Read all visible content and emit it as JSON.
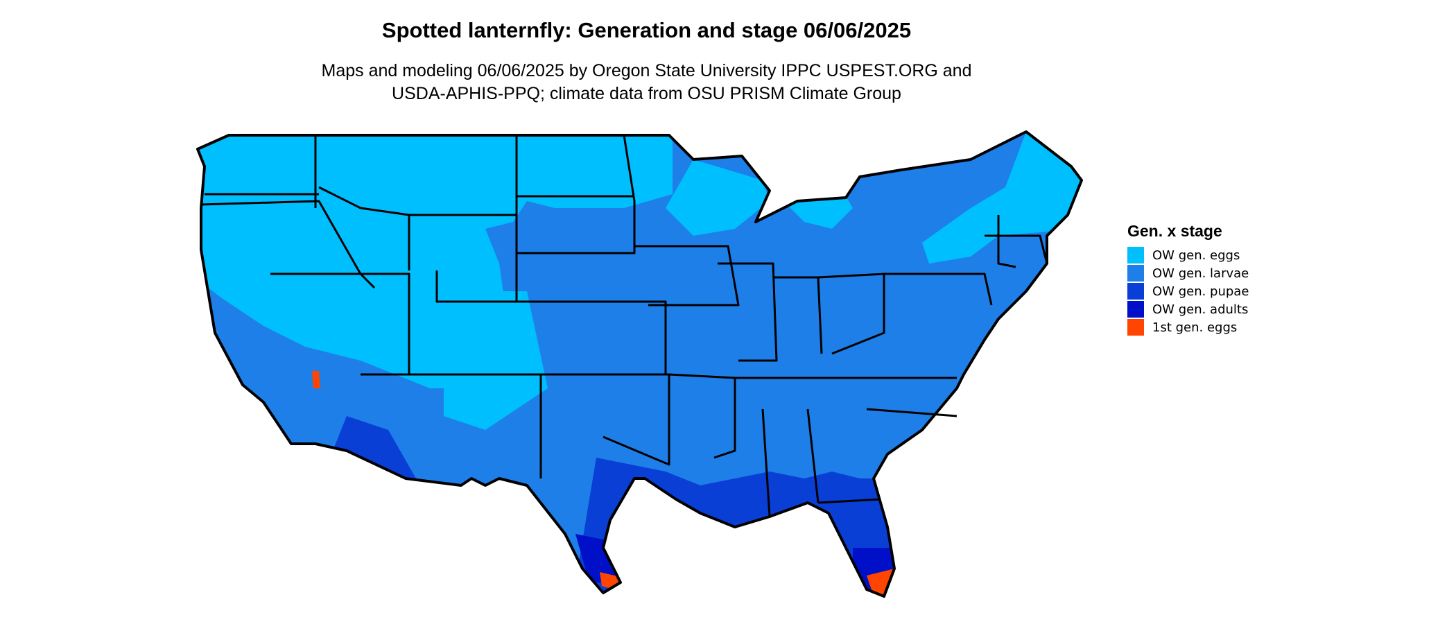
{
  "title": "Spotted lanternfly: Generation and stage 06/06/2025",
  "subtitle_line1": "Maps and modeling 06/06/2025 by Oregon State University IPPC USPEST.ORG and",
  "subtitle_line2": "USDA-APHIS-PPQ; climate data from OSU PRISM Climate Group",
  "legend": {
    "title": "Gen. x stage",
    "items": [
      {
        "label": "OW gen. eggs",
        "color": "#00BFFF"
      },
      {
        "label": "OW gen. larvae",
        "color": "#1E7FE8"
      },
      {
        "label": "OW gen. pupae",
        "color": "#0A3FD6"
      },
      {
        "label": "OW gen. adults",
        "color": "#0010C8"
      },
      {
        "label": "1st gen. eggs",
        "color": "#FF4500"
      }
    ]
  },
  "map": {
    "region": "Contiguous United States",
    "state_border_color": "#000000"
  }
}
